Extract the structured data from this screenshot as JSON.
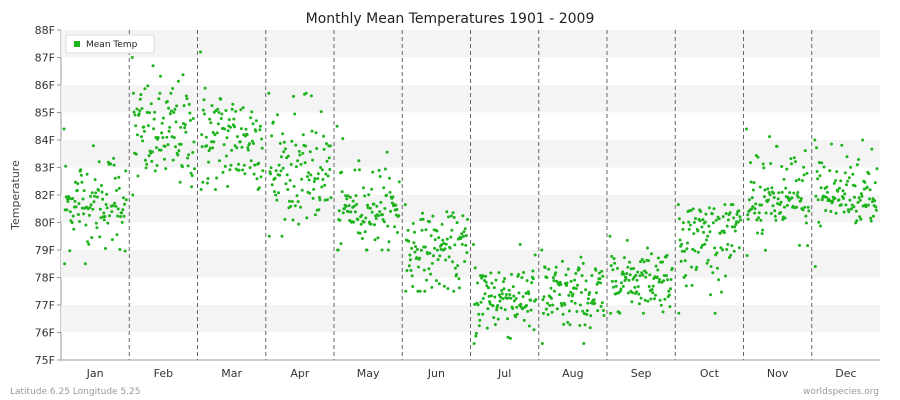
{
  "footer": {
    "left": "Latitude 6.25 Longitude 5.25",
    "right": "worldspecies.org"
  },
  "chart_data": {
    "type": "scatter",
    "title": "Monthly Mean Temperatures 1901 - 2009",
    "ylabel": "Temperature",
    "xlabel": "",
    "categories": [
      "Jan",
      "Feb",
      "Mar",
      "Apr",
      "May",
      "Jun",
      "Jul",
      "Aug",
      "Sep",
      "Oct",
      "Nov",
      "Dec"
    ],
    "y_ticks": [
      "75F",
      "76F",
      "77F",
      "78F",
      "79F",
      "80F",
      "82F",
      "83F",
      "84F",
      "85F",
      "86F",
      "87F",
      "88F"
    ],
    "ylim": [
      75,
      88
    ],
    "grid": "alternating horizontal bands, dashed vertical month separators",
    "legend": {
      "position": "top-left",
      "entries": [
        "Mean Temp"
      ]
    },
    "series": [
      {
        "name": "Mean Temp",
        "color": "#1db31d",
        "n_points_per_month": 109,
        "monthly": [
          {
            "month": "Jan",
            "mean": 81.4,
            "min": 78.5,
            "max": 84.4
          },
          {
            "month": "Feb",
            "mean": 84.2,
            "min": 82.0,
            "max": 87.0
          },
          {
            "month": "Mar",
            "mean": 84.0,
            "min": 82.2,
            "max": 87.2
          },
          {
            "month": "Apr",
            "mean": 82.8,
            "min": 79.5,
            "max": 85.7
          },
          {
            "month": "May",
            "mean": 81.0,
            "min": 79.0,
            "max": 84.5
          },
          {
            "month": "Jun",
            "mean": 79.0,
            "min": 77.5,
            "max": 81.3
          },
          {
            "month": "Jul",
            "mean": 77.3,
            "min": 75.6,
            "max": 79.2
          },
          {
            "month": "Aug",
            "mean": 77.3,
            "min": 75.6,
            "max": 79.0
          },
          {
            "month": "Sep",
            "mean": 78.0,
            "min": 76.7,
            "max": 79.5
          },
          {
            "month": "Oct",
            "mean": 79.6,
            "min": 76.7,
            "max": 81.3
          },
          {
            "month": "Nov",
            "mean": 81.5,
            "min": 78.8,
            "max": 84.4
          },
          {
            "month": "Dec",
            "mean": 81.9,
            "min": 78.4,
            "max": 84.0
          }
        ]
      }
    ]
  },
  "colors": {
    "band": "#f4f4f4",
    "separator": "#666666",
    "axis": "#999999"
  }
}
